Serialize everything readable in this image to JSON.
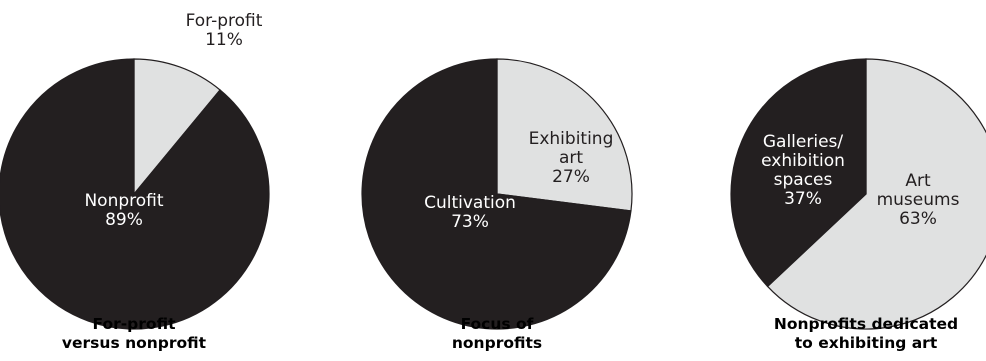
{
  "colors": {
    "dark": "#231f20",
    "light": "#e0e1e1",
    "dark_text": "#ffffff",
    "light_text": "#231f20"
  },
  "chart_data": [
    {
      "type": "pie",
      "title": "For-profit versus nonprofit",
      "title_lines": [
        "For-profit",
        "versus nonprofit"
      ],
      "slices": [
        {
          "label": "For-profit",
          "label_lines": [
            "For-profit"
          ],
          "value": 11,
          "value_label": "11%",
          "color": "#e0e1e1"
        },
        {
          "label": "Nonprofit",
          "label_lines": [
            "Nonprofit"
          ],
          "value": 89,
          "value_label": "89%",
          "color": "#231f20"
        }
      ]
    },
    {
      "type": "pie",
      "title": "Focus of nonprofits",
      "title_lines": [
        "Focus of",
        "nonprofits"
      ],
      "slices": [
        {
          "label": "Exhibiting art",
          "label_lines": [
            "Exhibiting",
            "art"
          ],
          "value": 27,
          "value_label": "27%",
          "color": "#e0e1e1"
        },
        {
          "label": "Cultivation",
          "label_lines": [
            "Cultivation"
          ],
          "value": 73,
          "value_label": "73%",
          "color": "#231f20"
        }
      ]
    },
    {
      "type": "pie",
      "title": "Nonprofits dedicated to exhibiting art",
      "title_lines": [
        "Nonprofits dedicated",
        "to exhibiting art"
      ],
      "slices": [
        {
          "label": "Art museums",
          "label_lines": [
            "Art",
            "museums"
          ],
          "value": 63,
          "value_label": "63%",
          "color": "#e0e1e1"
        },
        {
          "label": "Galleries/exhibition spaces",
          "label_lines": [
            "Galleries/",
            "exhibition",
            "spaces"
          ],
          "value": 37,
          "value_label": "37%",
          "color": "#231f20"
        }
      ]
    }
  ]
}
